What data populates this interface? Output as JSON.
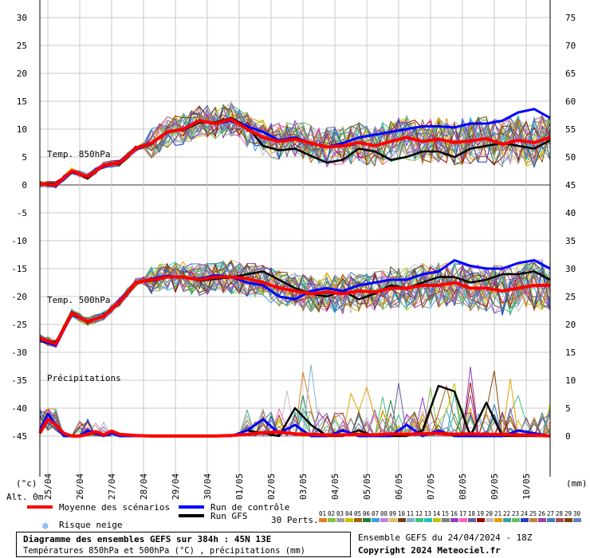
{
  "header": {
    "box_title": "Diagramme des ensembles GEFS sur 384h : 45N 13E",
    "box_subtitle": "Températures 850hPa et 500hPa (°C) , précipitations (mm)",
    "ensemble_run": "Ensemble GEFS du 24/04/2024 - 18Z",
    "copyright": "Copyright 2024 Meteociel.fr"
  },
  "labels": {
    "t850": "Temp. 850hPa",
    "t500": "Temp. 500hPa",
    "precip": "Précipitations",
    "left_unit": "(°c)",
    "right_unit": "(mm)",
    "altitude": "Alt. 0m"
  },
  "legend": {
    "mean": "Moyenne des scénarios",
    "control": "Run de contrôle",
    "gfs": "Run GFS",
    "snow": "Risque neige",
    "perts": "30 Perts.",
    "pert_numbers": [
      "01",
      "02",
      "03",
      "04",
      "05",
      "06",
      "07",
      "08",
      "09",
      "10",
      "11",
      "12",
      "13",
      "14",
      "15",
      "16",
      "17",
      "18",
      "19",
      "20",
      "21",
      "22",
      "23",
      "24",
      "25",
      "26",
      "27",
      "28",
      "29",
      "30"
    ],
    "pert_colors": [
      "#e08020",
      "#80c040",
      "#a0a0a0",
      "#d0c000",
      "#a06010",
      "#208040",
      "#40a0e0",
      "#c080e0",
      "#e0c060",
      "#704010",
      "#80b0d0",
      "#40c080",
      "#20c0c0",
      "#c0c000",
      "#808080",
      "#9040c0",
      "#ff60c0",
      "#6060a0",
      "#a00000",
      "#c0c0c0",
      "#e0a000",
      "#40a0a0",
      "#60c060",
      "#2040c0",
      "#c08040",
      "#a040a0",
      "#4080c0",
      "#a05050",
      "#804000",
      "#6080c0"
    ],
    "mean_color": "#ff0000",
    "control_color": "#0000ff",
    "gfs_color": "#000000",
    "snow_icon": "snowflake-icon"
  },
  "chart_data": {
    "type": "line",
    "title": "Diagramme des ensembles GEFS sur 384h : 45N 13E",
    "left_axis": {
      "label": "(°c)",
      "range": [
        -45,
        30
      ],
      "ticks": [
        30,
        25,
        20,
        15,
        10,
        5,
        0,
        -5,
        -10,
        -15,
        -20,
        -25,
        -30,
        -35,
        -40,
        -45
      ]
    },
    "right_axis": {
      "label": "(mm)",
      "range": [
        0,
        75
      ],
      "ticks": [
        75,
        70,
        65,
        60,
        55,
        50,
        45,
        40,
        35,
        30,
        25,
        20,
        15,
        10,
        5,
        0
      ]
    },
    "x_labels": [
      "25/04",
      "26/04",
      "27/04",
      "28/04",
      "29/04",
      "30/04",
      "01/05",
      "02/05",
      "03/05",
      "04/05",
      "05/05",
      "06/05",
      "07/05",
      "08/05",
      "09/05",
      "10/05"
    ],
    "x_range_hours": [
      0,
      384
    ],
    "grid": true,
    "series": [
      {
        "name": "Moyenne des scénarios",
        "panel": "t850",
        "x": [
          0,
          12,
          24,
          36,
          48,
          60,
          72,
          84,
          96,
          108,
          120,
          132,
          144,
          156,
          168,
          180,
          192,
          204,
          216,
          228,
          240,
          252,
          264,
          276,
          288,
          300,
          312,
          324,
          336,
          348,
          360,
          372,
          384
        ],
        "values": [
          0.2,
          0,
          2.5,
          1.5,
          3.5,
          4,
          6.5,
          7.5,
          9.5,
          10,
          11.5,
          11,
          11.8,
          10,
          8.5,
          7.8,
          8.2,
          7.5,
          6.8,
          7,
          7.6,
          7,
          7.8,
          8.5,
          7.8,
          8.2,
          7.6,
          7.9,
          8.3,
          7.3,
          8,
          7.6,
          8.5
        ]
      },
      {
        "name": "Run de contrôle",
        "panel": "t850",
        "x": [
          0,
          12,
          24,
          36,
          48,
          60,
          72,
          84,
          96,
          108,
          120,
          132,
          144,
          156,
          168,
          180,
          192,
          204,
          216,
          228,
          240,
          252,
          264,
          276,
          288,
          300,
          312,
          324,
          336,
          348,
          360,
          372,
          384
        ],
        "values": [
          0.2,
          -0.2,
          2.3,
          1.5,
          3.3,
          4.2,
          6.6,
          7.6,
          9.4,
          10.1,
          11.6,
          11,
          11.5,
          10.5,
          9.5,
          8,
          8.5,
          7.5,
          6.8,
          7.5,
          8.5,
          9,
          9.5,
          10,
          10.5,
          10.5,
          10.3,
          11,
          11,
          11.5,
          13,
          13.6,
          12
        ]
      },
      {
        "name": "Run GFS",
        "panel": "t850",
        "x": [
          0,
          12,
          24,
          36,
          48,
          60,
          72,
          84,
          96,
          108,
          120,
          132,
          144,
          156,
          168,
          180,
          192,
          204,
          216,
          228,
          240,
          252,
          264,
          276,
          288,
          300,
          312,
          324,
          336,
          348,
          360,
          372,
          384
        ],
        "values": [
          0.3,
          0.2,
          2.6,
          1.2,
          3.6,
          3.8,
          6.4,
          7.3,
          9.6,
          9.8,
          11.2,
          11.2,
          12,
          10.5,
          7,
          6.2,
          6.5,
          5.2,
          4,
          4.5,
          6.5,
          6,
          4.5,
          5,
          6,
          6,
          5,
          6.5,
          7,
          7.5,
          7,
          6.5,
          8
        ]
      },
      {
        "name": "Moyenne des scénarios",
        "panel": "t500",
        "x": [
          0,
          12,
          24,
          36,
          48,
          60,
          72,
          84,
          96,
          108,
          120,
          132,
          144,
          156,
          168,
          180,
          192,
          204,
          216,
          228,
          240,
          252,
          264,
          276,
          288,
          300,
          312,
          324,
          336,
          348,
          360,
          372,
          384
        ],
        "values": [
          -27.5,
          -28.5,
          -23,
          -24.5,
          -23.5,
          -21,
          -17.5,
          -17,
          -16.5,
          -16.5,
          -17,
          -16.5,
          -16.5,
          -16.8,
          -17.5,
          -18.5,
          -19,
          -19.5,
          -19.2,
          -19.5,
          -19,
          -19.2,
          -18.5,
          -18.5,
          -18,
          -18,
          -17.5,
          -18.5,
          -18.5,
          -19,
          -18.5,
          -18,
          -18
        ]
      },
      {
        "name": "Run de contrôle",
        "panel": "t500",
        "x": [
          0,
          12,
          24,
          36,
          48,
          60,
          72,
          84,
          96,
          108,
          120,
          132,
          144,
          156,
          168,
          180,
          192,
          204,
          216,
          228,
          240,
          252,
          264,
          276,
          288,
          300,
          312,
          324,
          336,
          348,
          360,
          372,
          384
        ],
        "values": [
          -27.8,
          -28.8,
          -23.2,
          -24.5,
          -23.6,
          -20.8,
          -17.6,
          -16.8,
          -16.3,
          -16.6,
          -16.8,
          -16.2,
          -16.5,
          -17.5,
          -18,
          -20,
          -20.5,
          -19,
          -18.5,
          -19,
          -18,
          -17.5,
          -17,
          -17,
          -16,
          -15.5,
          -13.5,
          -14.5,
          -15,
          -15,
          -14,
          -13.5,
          -15
        ]
      },
      {
        "name": "Run GFS",
        "panel": "t500",
        "x": [
          0,
          12,
          24,
          36,
          48,
          60,
          72,
          84,
          96,
          108,
          120,
          132,
          144,
          156,
          168,
          180,
          192,
          204,
          216,
          228,
          240,
          252,
          264,
          276,
          288,
          300,
          312,
          324,
          336,
          348,
          360,
          372,
          384
        ],
        "values": [
          -27.6,
          -28.2,
          -22.8,
          -24.6,
          -23.4,
          -21.2,
          -17.4,
          -17.2,
          -16.6,
          -16.4,
          -17.2,
          -16.8,
          -16.6,
          -16,
          -15.5,
          -17,
          -18.5,
          -19.5,
          -20,
          -19,
          -20.5,
          -19.5,
          -18,
          -18.5,
          -17.5,
          -16.5,
          -16.5,
          -17.5,
          -17,
          -16,
          -16,
          -15.5,
          -17
        ]
      },
      {
        "name": "Moyenne des scénarios",
        "panel": "precip",
        "x": [
          0,
          6,
          12,
          18,
          24,
          30,
          36,
          42,
          48,
          54,
          60,
          72,
          84,
          96,
          108,
          120,
          132,
          144,
          156,
          168,
          180,
          192,
          204,
          216,
          228,
          240,
          252,
          264,
          276,
          288,
          300,
          312,
          324,
          336,
          348,
          360,
          372,
          384
        ],
        "values": [
          0.5,
          3,
          2,
          0.5,
          0,
          0,
          0.3,
          0.8,
          0.2,
          0.9,
          0.3,
          0.1,
          0,
          0,
          0,
          0,
          0,
          0.1,
          0.3,
          0.6,
          0.7,
          0.4,
          0.3,
          0.2,
          0.2,
          0.3,
          0.2,
          0.4,
          0.3,
          0.4,
          0.5,
          0.3,
          0.4,
          0.3,
          0.3,
          0.2,
          0.2,
          0
        ]
      },
      {
        "name": "Run de contrôle",
        "panel": "precip",
        "x": [
          0,
          6,
          12,
          18,
          24,
          30,
          36,
          42,
          48,
          54,
          60,
          72,
          84,
          96,
          108,
          120,
          132,
          144,
          156,
          168,
          180,
          192,
          204,
          216,
          228,
          240,
          252,
          264,
          276,
          288,
          300,
          312,
          324,
          336,
          348,
          360,
          372,
          384
        ],
        "values": [
          1,
          4,
          2,
          0,
          0,
          0,
          1,
          0.5,
          0,
          0.5,
          0,
          0,
          0,
          0,
          0,
          0,
          0,
          0,
          1,
          3,
          0.5,
          2,
          0,
          0,
          1,
          0,
          0,
          0,
          2,
          0,
          1,
          0,
          0,
          0,
          0,
          1,
          0.5,
          0
        ]
      },
      {
        "name": "Run GFS",
        "panel": "precip",
        "x": [
          0,
          6,
          12,
          18,
          24,
          30,
          36,
          42,
          48,
          54,
          60,
          72,
          84,
          96,
          108,
          120,
          132,
          144,
          156,
          168,
          180,
          192,
          204,
          216,
          228,
          240,
          252,
          264,
          276,
          288,
          300,
          312,
          324,
          336,
          348,
          360,
          372,
          384
        ],
        "values": [
          1,
          3,
          2,
          0,
          0,
          0,
          0.5,
          0.5,
          0,
          0.5,
          0,
          0,
          0,
          0,
          0,
          0,
          0,
          0,
          1,
          0.5,
          0,
          5,
          2,
          0,
          0,
          1,
          0,
          0,
          0,
          1,
          9,
          8,
          0,
          6,
          0,
          0,
          0,
          0
        ]
      }
    ]
  }
}
